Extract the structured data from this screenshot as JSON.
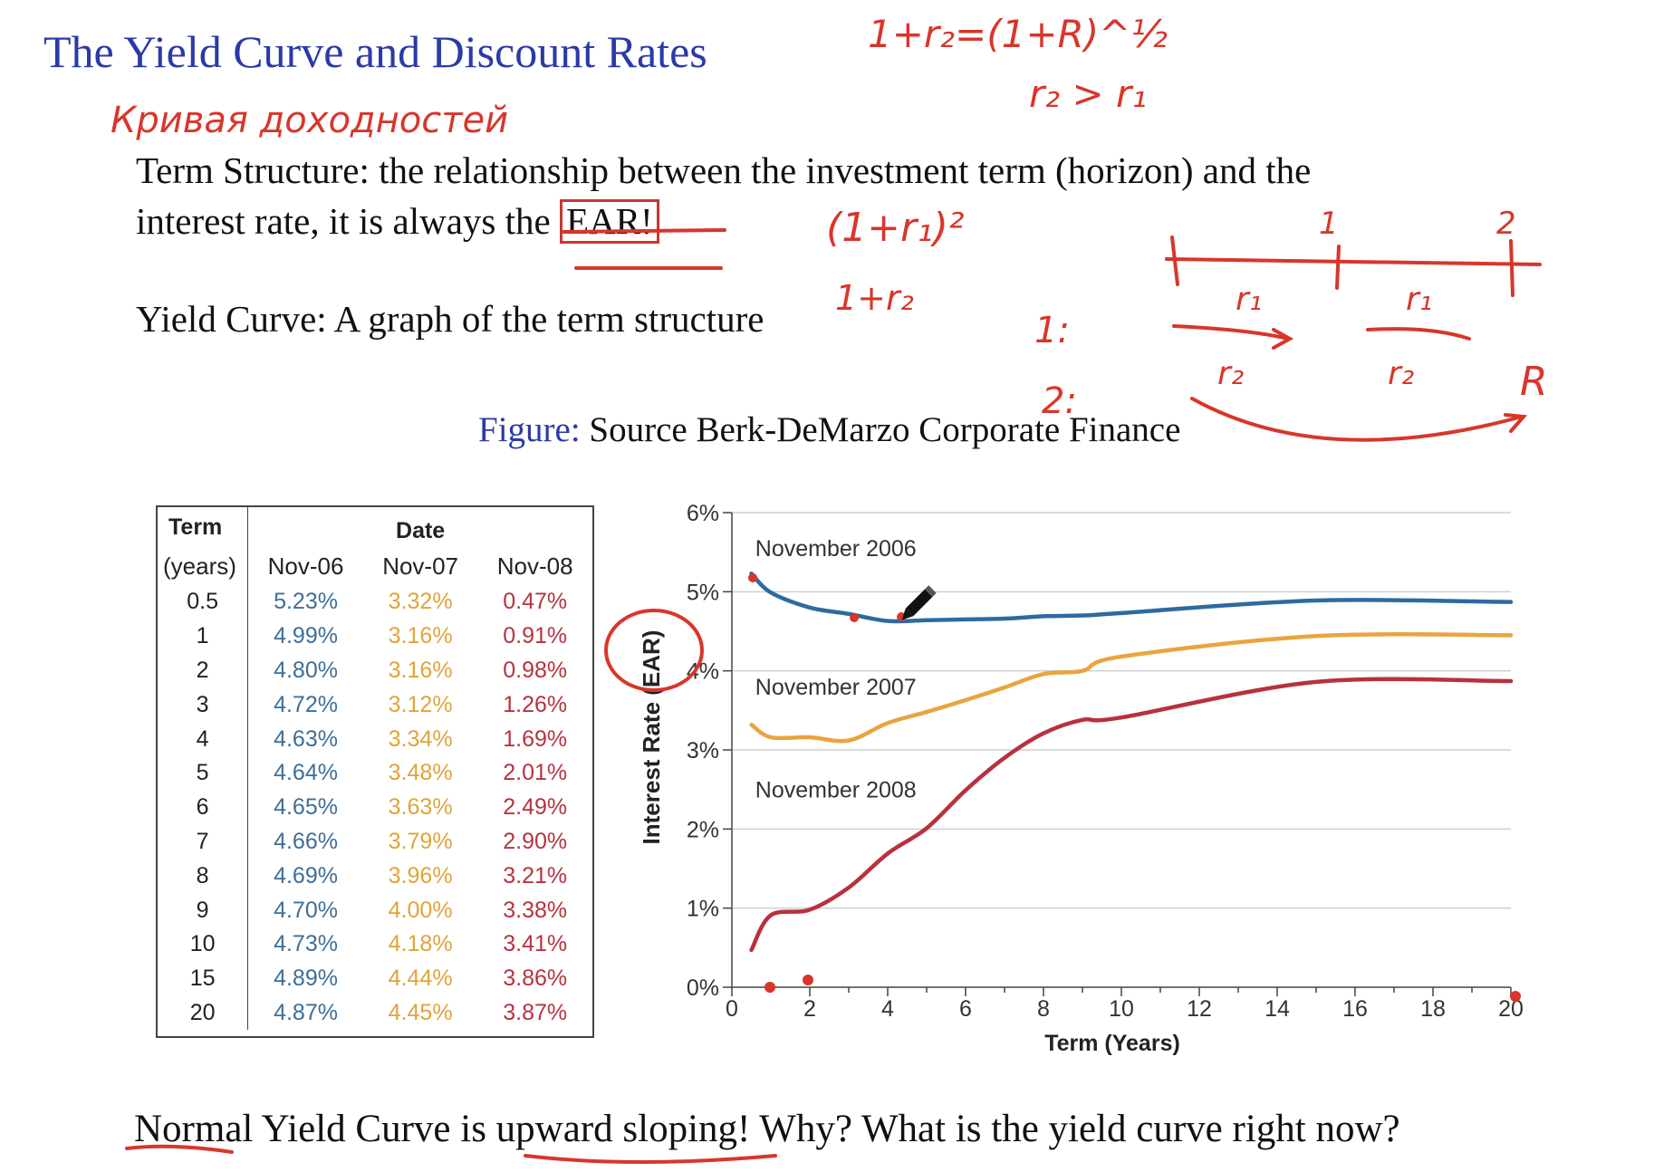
{
  "slide": {
    "title": "The Yield Curve and Discount Rates",
    "term_structure_line1": "Term Structure: the relationship between the investment term (horizon) and the",
    "term_structure_line2_pre": "interest rate, it is always the",
    "term_structure_ear": "EAR!",
    "yield_curve_def": "Yield Curve: A graph of the term structure",
    "figure_label": "Figure:",
    "figure_source": "Source Berk-DeMarzo Corporate Finance",
    "bottom_line": "Normal Yield Curve is upward sloping! Why? What is the yield curve right now?"
  },
  "table": {
    "term_header": "Term",
    "term_subheader": "(years)",
    "date_header": "Date",
    "columns": [
      "Nov-06",
      "Nov-07",
      "Nov-08"
    ],
    "rows": [
      {
        "term": "0.5",
        "v": [
          "5.23%",
          "3.32%",
          "0.47%"
        ]
      },
      {
        "term": "1",
        "v": [
          "4.99%",
          "3.16%",
          "0.91%"
        ]
      },
      {
        "term": "2",
        "v": [
          "4.80%",
          "3.16%",
          "0.98%"
        ]
      },
      {
        "term": "3",
        "v": [
          "4.72%",
          "3.12%",
          "1.26%"
        ]
      },
      {
        "term": "4",
        "v": [
          "4.63%",
          "3.34%",
          "1.69%"
        ]
      },
      {
        "term": "5",
        "v": [
          "4.64%",
          "3.48%",
          "2.01%"
        ]
      },
      {
        "term": "6",
        "v": [
          "4.65%",
          "3.63%",
          "2.49%"
        ]
      },
      {
        "term": "7",
        "v": [
          "4.66%",
          "3.79%",
          "2.90%"
        ]
      },
      {
        "term": "8",
        "v": [
          "4.69%",
          "3.96%",
          "3.21%"
        ]
      },
      {
        "term": "9",
        "v": [
          "4.70%",
          "4.00%",
          "3.38%"
        ]
      },
      {
        "term": "10",
        "v": [
          "4.73%",
          "4.18%",
          "3.41%"
        ]
      },
      {
        "term": "15",
        "v": [
          "4.89%",
          "4.44%",
          "3.86%"
        ]
      },
      {
        "term": "20",
        "v": [
          "4.87%",
          "4.45%",
          "3.87%"
        ]
      }
    ]
  },
  "chart_data": {
    "type": "line",
    "title": "",
    "xlabel": "Term (Years)",
    "ylabel": "Interest Rate (EAR)",
    "xlim": [
      0,
      20
    ],
    "ylim": [
      0,
      6
    ],
    "x_ticks": [
      0,
      2,
      4,
      6,
      8,
      10,
      12,
      14,
      16,
      18,
      20
    ],
    "y_ticks": [
      0,
      1,
      2,
      3,
      4,
      5,
      6
    ],
    "y_tick_labels": [
      "0%",
      "1%",
      "2%",
      "3%",
      "4%",
      "5%",
      "6%"
    ],
    "grid": "horizontal",
    "series": [
      {
        "name": "November 2006",
        "color": "#2e6aa0",
        "x": [
          0.5,
          1,
          2,
          3,
          4,
          5,
          6,
          7,
          8,
          9,
          10,
          15,
          20
        ],
        "y": [
          5.23,
          4.99,
          4.8,
          4.72,
          4.63,
          4.64,
          4.65,
          4.66,
          4.69,
          4.7,
          4.73,
          4.89,
          4.87
        ]
      },
      {
        "name": "November 2007",
        "color": "#e9a43e",
        "x": [
          0.5,
          1,
          2,
          3,
          4,
          5,
          6,
          7,
          8,
          9,
          10,
          15,
          20
        ],
        "y": [
          3.32,
          3.16,
          3.16,
          3.12,
          3.34,
          3.48,
          3.63,
          3.79,
          3.96,
          4.0,
          4.18,
          4.44,
          4.45
        ]
      },
      {
        "name": "November 2008",
        "color": "#b8313f",
        "x": [
          0.5,
          1,
          2,
          3,
          4,
          5,
          6,
          7,
          8,
          9,
          10,
          15,
          20
        ],
        "y": [
          0.47,
          0.91,
          0.98,
          1.26,
          1.69,
          2.01,
          2.49,
          2.9,
          3.21,
          3.38,
          3.41,
          3.86,
          3.87
        ]
      }
    ]
  },
  "annotations": {
    "color": "#d8362b",
    "handwriting": {
      "formula_top": "1+r₂=(1+R)^½",
      "formula_ineq": "r₂ > r₁",
      "russian_note": "Кривая доходностей",
      "compound": "(1+r₁)²",
      "one_plus_r2": "1+r₂",
      "step1": "1:",
      "step2": "2:",
      "t1": "1",
      "t2": "2",
      "r1a": "r₁",
      "r1b": "r₁",
      "r2a": "r₂",
      "r2b": "r₂",
      "R": "R"
    }
  },
  "cursor_icon": "pencil-icon"
}
